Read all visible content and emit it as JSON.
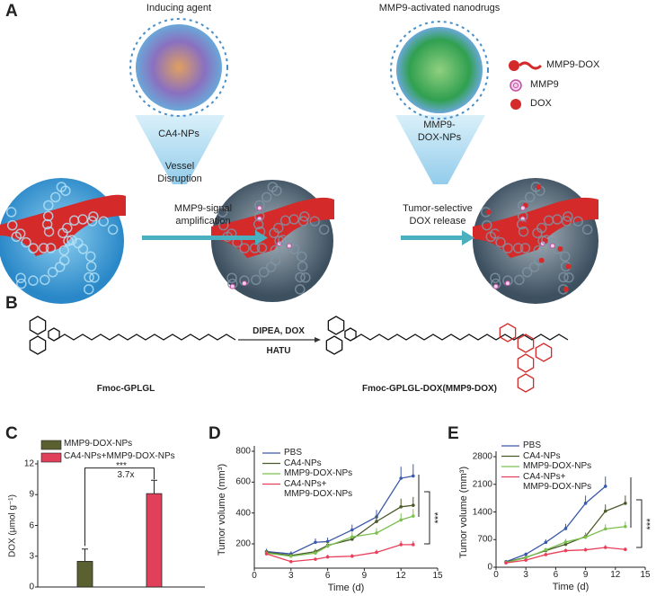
{
  "panel_labels": {
    "a": "A",
    "b": "B",
    "c": "C",
    "d": "D",
    "e": "E"
  },
  "panel_a": {
    "inducing_agent_title": "Inducing agent",
    "nanodrugs_title": "MMP9-activated nanodrugs",
    "ca4_nps": "CA4-NPs",
    "vessel_disruption_1": "Vessel",
    "vessel_disruption_2": "Disruption",
    "amplification_1": "MMP9-signal",
    "amplification_2": "amplification",
    "mmp9_dox_nps_1": "MMP9-",
    "mmp9_dox_nps_2": "DOX-NPs",
    "release_1": "Tumor-selective",
    "release_2": "DOX release",
    "legend": [
      {
        "label": "MMP9-DOX",
        "icon": "peptide-drug-icon",
        "color": "#d42a2a"
      },
      {
        "label": "MMP9",
        "icon": "enzyme-ring-icon",
        "color": "#d070b0"
      },
      {
        "label": "DOX",
        "icon": "drug-star-icon",
        "color": "#d42a2a"
      }
    ],
    "colors": {
      "tumor": "#3aa0d8",
      "vessel": "#d42a2a",
      "arrow": "#4ab0c0",
      "funnel": "#a8d8ee"
    }
  },
  "panel_b": {
    "reagents_top": "DIPEA, DOX",
    "reagents_bottom": "HATU",
    "reactant_name": "Fmoc-GPLGL",
    "product_name": "Fmoc-GPLGL-DOX(MMP9-DOX)"
  },
  "chart_data": [
    {
      "type": "bar",
      "panel": "C",
      "ylabel": "DOX (μmol g⁻¹)",
      "ylim": [
        0,
        12
      ],
      "yticks": [
        0,
        3,
        6,
        9,
        12
      ],
      "series": [
        {
          "name": "MMP9-DOX-NPs",
          "value": 2.5,
          "error": 1.2,
          "color": "#5b6030"
        },
        {
          "name": "CA4-NPs+MMP9-DOX-NPs",
          "value": 9.1,
          "error": 1.3,
          "color": "#e0405a"
        }
      ],
      "annotation": "3.7x",
      "significance": "***",
      "legend": "top-left"
    },
    {
      "type": "line",
      "panel": "D",
      "xlabel": "Time (d)",
      "ylabel": "Tumor volume (mm³)",
      "xlim": [
        0,
        15
      ],
      "xticks": [
        0,
        3,
        6,
        9,
        12,
        15
      ],
      "yticks": [
        200,
        400,
        600,
        800
      ],
      "x": [
        1,
        3,
        5,
        6,
        8,
        10,
        12,
        13
      ],
      "series": [
        {
          "name": "PBS",
          "color": "#3c5aa8",
          "values": [
            150,
            135,
            210,
            215,
            290,
            375,
            625,
            640
          ]
        },
        {
          "name": "CA4-NPs",
          "color": "#4a5a2a",
          "values": [
            145,
            125,
            150,
            190,
            230,
            345,
            440,
            450
          ]
        },
        {
          "name": "MMP9-DOX-NPs",
          "color": "#7cc050",
          "values": [
            140,
            120,
            140,
            185,
            245,
            270,
            355,
            380
          ]
        },
        {
          "name": "CA4-NPs+ MMP9-DOX-NPs",
          "color": "#e8405a",
          "values": [
            135,
            85,
            100,
            115,
            120,
            145,
            195,
            195
          ]
        }
      ],
      "significance": "***",
      "legend": "top-left"
    },
    {
      "type": "line",
      "panel": "E",
      "xlabel": "Time (d)",
      "ylabel": "Tumor volume (mm³)",
      "xlim": [
        0,
        15
      ],
      "ylim": [
        0,
        2800
      ],
      "xticks": [
        0,
        3,
        6,
        9,
        12,
        15
      ],
      "yticks": [
        0,
        700,
        1400,
        2100,
        2800
      ],
      "x": [
        1,
        3,
        5,
        7,
        9,
        11,
        13
      ],
      "series": [
        {
          "name": "PBS",
          "color": "#3c5aa8",
          "values": [
            140,
            330,
            630,
            980,
            1620,
            2050,
            null
          ]
        },
        {
          "name": "CA4-NPs",
          "color": "#4a5a2a",
          "values": [
            130,
            250,
            420,
            580,
            780,
            1420,
            1620
          ]
        },
        {
          "name": "MMP9-DOX-NPs",
          "color": "#7cc050",
          "values": [
            120,
            240,
            440,
            640,
            760,
            970,
            1030
          ]
        },
        {
          "name": "CA4-NPs+ MMP9-DOX-NPs",
          "color": "#e8405a",
          "values": [
            110,
            180,
            320,
            420,
            440,
            500,
            450
          ]
        }
      ],
      "significance": "***",
      "legend": "top-left"
    }
  ]
}
